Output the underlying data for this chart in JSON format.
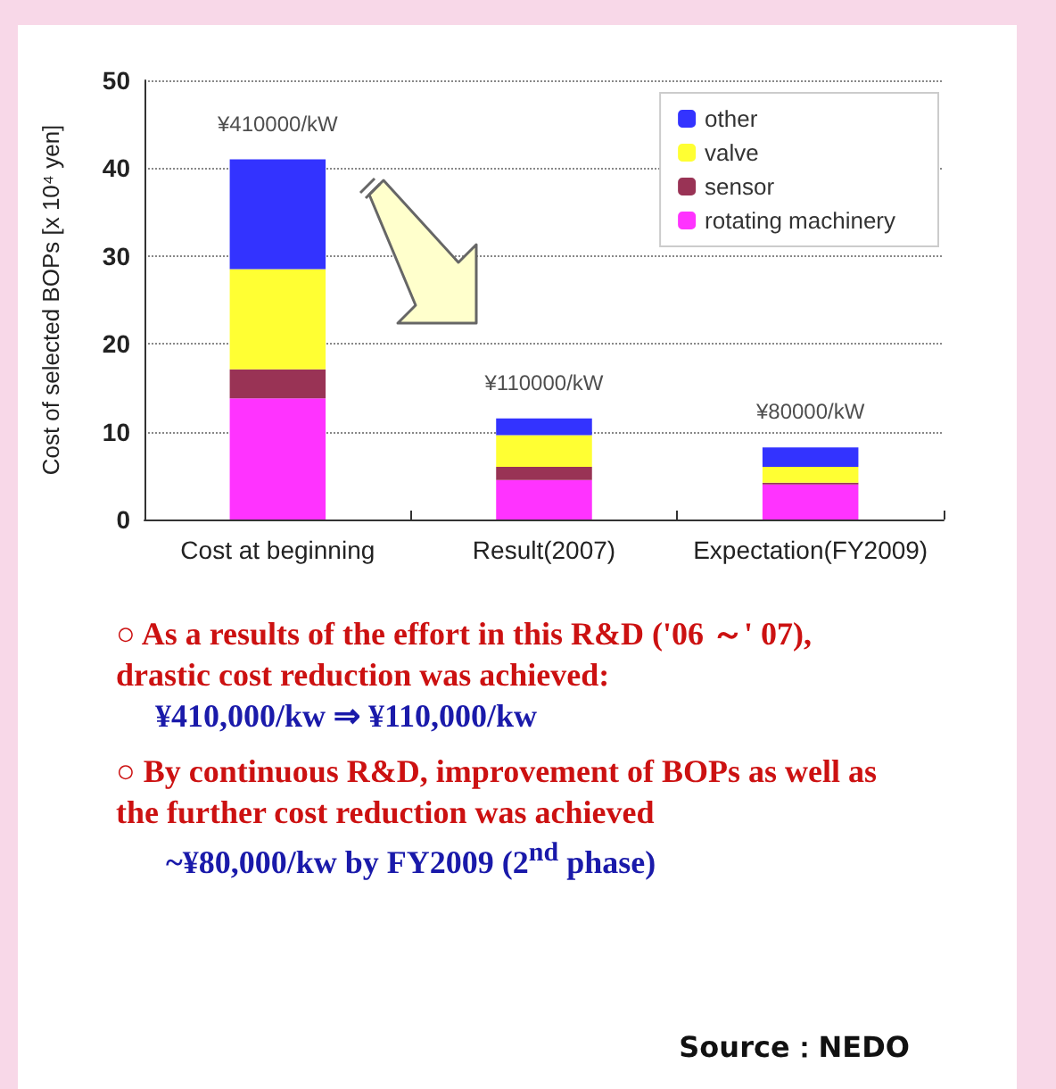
{
  "chart_data": {
    "type": "bar",
    "stacked": true,
    "categories": [
      "Cost at beginning",
      "Result(2007)",
      "Expectation(FY2009)"
    ],
    "ylabel": "Cost of selected BOPs [x 10⁴ yen]",
    "ylim": [
      0,
      50
    ],
    "yticks": [
      0,
      10,
      20,
      30,
      40,
      50
    ],
    "grid": "y",
    "legend": "top right",
    "series": [
      {
        "name": "rotating machinery",
        "color": "#ff33ff",
        "values": [
          13.8,
          4.5,
          4.0
        ]
      },
      {
        "name": "sensor",
        "color": "#993355",
        "values": [
          3.3,
          1.5,
          0.2
        ]
      },
      {
        "name": "valve",
        "color": "#ffff33",
        "values": [
          11.4,
          3.6,
          1.8
        ]
      },
      {
        "name": "other",
        "color": "#3333ff",
        "values": [
          12.5,
          1.9,
          2.2
        ]
      }
    ],
    "annotations": [
      {
        "text": "¥410000/kW",
        "x": "Cost at beginning",
        "y": 41
      },
      {
        "text": "¥110000/kW",
        "x": "Result(2007)",
        "y": 11.5
      },
      {
        "text": "¥80000/kW",
        "x": "Expectation(FY2009)",
        "y": 8.2
      },
      "○ As a results of the effort in this R&D ('06 ～' 07), drastic cost reduction was achieved:",
      "¥410,000/kw ⇒ ¥110,000/kw",
      "○ By continuous R&D, improvement of BOPs as well as the further cost reduction was achieved",
      "~¥80,000/kw by FY2009 (2$^{nd}$ phase)",
      "Source：NEDO"
    ]
  }
}
